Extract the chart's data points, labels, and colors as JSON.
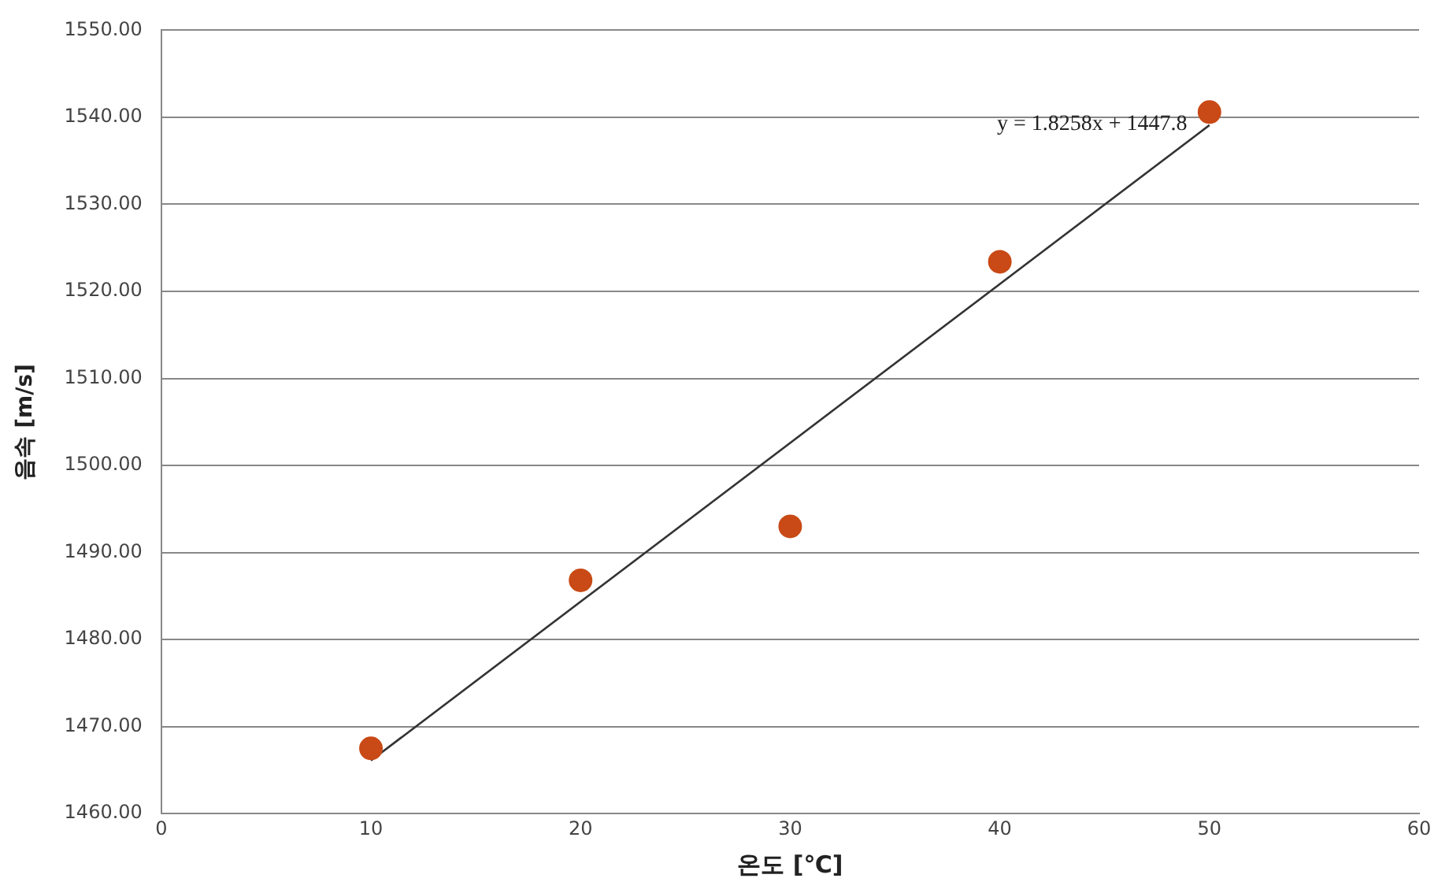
{
  "chart_data": {
    "type": "scatter",
    "xlabel": "온도 [℃]",
    "ylabel": "음속 [m/s]",
    "series": [
      {
        "color": "#c94a16",
        "marker": "circle",
        "x": [
          10,
          20,
          30,
          40,
          50
        ],
        "values": [
          1467.5,
          1486.8,
          1493.0,
          1523.4,
          1540.6
        ]
      },
      {
        "type": "line",
        "color": "#333333",
        "marker": "none",
        "x": [
          10,
          50
        ],
        "values": [
          1466.1,
          1539.1
        ]
      }
    ],
    "annotations": [
      "y = 1.8258x + 1447.8"
    ],
    "xlim": [
      0,
      60
    ],
    "xticks": [
      0,
      10,
      20,
      30,
      40,
      50,
      60
    ],
    "ylim": [
      1460,
      1550
    ],
    "yticks": [
      {
        "value": 1460,
        "label": "1460.00"
      },
      {
        "value": 1470,
        "label": "1470.00"
      },
      {
        "value": 1480,
        "label": "1480.00"
      },
      {
        "value": 1490,
        "label": "1490.00"
      },
      {
        "value": 1500,
        "label": "1500.00"
      },
      {
        "value": 1510,
        "label": "1510.00"
      },
      {
        "value": 1520,
        "label": "1520.00"
      },
      {
        "value": 1530,
        "label": "1530.00"
      },
      {
        "value": 1540,
        "label": "1540.00"
      },
      {
        "value": 1550,
        "label": "1550.00"
      }
    ],
    "grid": "y",
    "legend": false
  }
}
